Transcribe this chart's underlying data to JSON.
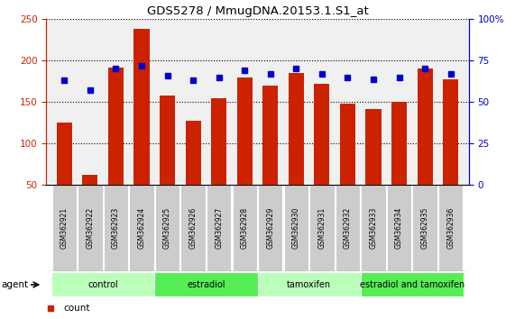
{
  "title": "GDS5278 / MmugDNA.20153.1.S1_at",
  "samples": [
    "GSM362921",
    "GSM362922",
    "GSM362923",
    "GSM362924",
    "GSM362925",
    "GSM362926",
    "GSM362927",
    "GSM362928",
    "GSM362929",
    "GSM362930",
    "GSM362931",
    "GSM362932",
    "GSM362933",
    "GSM362934",
    "GSM362935",
    "GSM362936"
  ],
  "counts": [
    125,
    62,
    192,
    238,
    158,
    128,
    155,
    180,
    170,
    185,
    172,
    148,
    142,
    150,
    190,
    178
  ],
  "percentiles": [
    63,
    57,
    70,
    72,
    66,
    63,
    65,
    69,
    67,
    70,
    67,
    65,
    64,
    65,
    70,
    67
  ],
  "bar_color": "#cc2200",
  "dot_color": "#0000cc",
  "ylim_left": [
    50,
    250
  ],
  "ylim_right": [
    0,
    100
  ],
  "yticks_left": [
    50,
    100,
    150,
    200,
    250
  ],
  "yticks_right": [
    0,
    25,
    50,
    75,
    100
  ],
  "yticklabels_right": [
    "0",
    "25",
    "50",
    "75",
    "100%"
  ],
  "groups": [
    {
      "label": "control",
      "start": 0,
      "end": 4,
      "color": "#bbffbb"
    },
    {
      "label": "estradiol",
      "start": 4,
      "end": 8,
      "color": "#55ee55"
    },
    {
      "label": "tamoxifen",
      "start": 8,
      "end": 12,
      "color": "#bbffbb"
    },
    {
      "label": "estradiol and tamoxifen",
      "start": 12,
      "end": 16,
      "color": "#55ee55"
    }
  ],
  "tick_color_left": "#cc2200",
  "tick_color_right": "#0000cc",
  "sample_box_color": "#cccccc",
  "background_color": "#ffffff"
}
